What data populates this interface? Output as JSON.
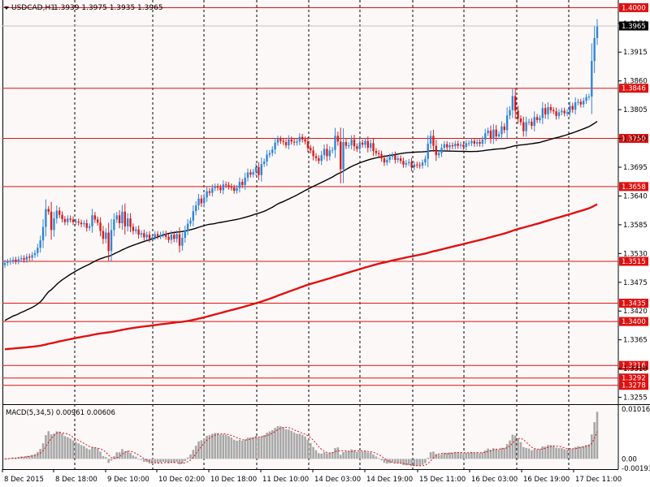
{
  "header": {
    "symbol_timeframe": "USDCAD,H1",
    "ohlc": "1.3939 1.3975 1.3935 1.3965"
  },
  "indicator": {
    "label": "MACD(5,34,5) 0.00961 0.00606"
  },
  "colors": {
    "background": "#fdf8f8",
    "up_candle": "#2e86d9",
    "down_candle": "#d81b1b",
    "level_line": "#e01010",
    "ma_fast": "#000000",
    "ma_slow": "#e01010",
    "macd_hist": "#a8a8a8",
    "macd_signal": "#e01010",
    "current_price_bg": "#000000"
  },
  "chart_data": [
    {
      "type": "candlestick",
      "symbol": "USDCAD",
      "timeframe": "H1",
      "ylim": [
        1.3245,
        1.401
      ],
      "y_ticks": [
        1.3255,
        1.331,
        1.3365,
        1.342,
        1.3475,
        1.353,
        1.3585,
        1.364,
        1.3695,
        1.375,
        1.3805,
        1.386,
        1.3915,
        1.397
      ],
      "x_ticks": [
        "8 Dec 2015",
        "8 Dec 18:00",
        "9 Dec 10:00",
        "10 Dec 02:00",
        "10 Dec 18:00",
        "11 Dec 10:00",
        "14 Dec 03:00",
        "14 Dec 19:00",
        "15 Dec 11:00",
        "16 Dec 03:00",
        "16 Dec 19:00",
        "17 Dec 11:00"
      ],
      "current_price": "1.3965",
      "levels": [
        "1.4000",
        "1.3846",
        "1.3750",
        "1.3658",
        "1.3515",
        "1.3435",
        "1.3400",
        "1.3316",
        "1.3292",
        "1.3278"
      ],
      "close": [
        1.3512,
        1.3514,
        1.3516,
        1.3518,
        1.3515,
        1.3519,
        1.3521,
        1.3518,
        1.3524,
        1.3522,
        1.3527,
        1.3531,
        1.3541,
        1.3555,
        1.3581,
        1.3615,
        1.361,
        1.3575,
        1.3597,
        1.3612,
        1.3604,
        1.3596,
        1.359,
        1.3597,
        1.3595,
        1.359,
        1.3591,
        1.3589,
        1.3586,
        1.3588,
        1.3579,
        1.3582,
        1.3603,
        1.3595,
        1.3589,
        1.3573,
        1.3558,
        1.357,
        1.3535,
        1.3575,
        1.3595,
        1.3603,
        1.3588,
        1.361,
        1.3582,
        1.3597,
        1.3581,
        1.3573,
        1.3576,
        1.3566,
        1.3569,
        1.3561,
        1.3566,
        1.3558,
        1.3561,
        1.3567,
        1.3563,
        1.3566,
        1.3568,
        1.3562,
        1.3556,
        1.3566,
        1.3558,
        1.3567,
        1.3545,
        1.356,
        1.3574,
        1.3587,
        1.3593,
        1.3611,
        1.3622,
        1.3635,
        1.3626,
        1.3637,
        1.3649,
        1.3646,
        1.3655,
        1.3658,
        1.3656,
        1.3651,
        1.3662,
        1.3661,
        1.3658,
        1.3656,
        1.365,
        1.3655,
        1.3667,
        1.3661,
        1.3675,
        1.3685,
        1.3681,
        1.3686,
        1.3695,
        1.368,
        1.3701,
        1.3706,
        1.3719,
        1.3722,
        1.3729,
        1.3742,
        1.3749,
        1.3745,
        1.3743,
        1.3737,
        1.3748,
        1.3744,
        1.3742,
        1.3744,
        1.3753,
        1.3748,
        1.3744,
        1.3732,
        1.3727,
        1.3716,
        1.3712,
        1.3707,
        1.3718,
        1.373,
        1.3716,
        1.3727,
        1.3728,
        1.3755,
        1.3744,
        1.3691,
        1.3743,
        1.3736,
        1.3737,
        1.3748,
        1.3735,
        1.373,
        1.3742,
        1.3738,
        1.3745,
        1.3732,
        1.3741,
        1.3726,
        1.3722,
        1.372,
        1.3712,
        1.3704,
        1.3709,
        1.3715,
        1.3718,
        1.3709,
        1.3712,
        1.3707,
        1.37,
        1.3703,
        1.3705,
        1.3695,
        1.37,
        1.3699,
        1.3698,
        1.3704,
        1.3711,
        1.374,
        1.3755,
        1.3736,
        1.3718,
        1.3722,
        1.3732,
        1.3739,
        1.3733,
        1.3737,
        1.3735,
        1.374,
        1.3736,
        1.3738,
        1.3734,
        1.3741,
        1.3741,
        1.3745,
        1.374,
        1.3743,
        1.374,
        1.3748,
        1.376,
        1.3765,
        1.375,
        1.3767,
        1.3754,
        1.3758,
        1.3773,
        1.3766,
        1.3794,
        1.3804,
        1.3831,
        1.3803,
        1.3788,
        1.3781,
        1.3764,
        1.3781,
        1.3782,
        1.3774,
        1.3791,
        1.3785,
        1.3789,
        1.3808,
        1.3796,
        1.381,
        1.3804,
        1.3802,
        1.3793,
        1.38,
        1.3803,
        1.3798,
        1.38,
        1.3812,
        1.3805,
        1.3819,
        1.382,
        1.3815,
        1.3822,
        1.3829,
        1.383,
        1.3898,
        1.3942,
        1.3965
      ]
    },
    {
      "type": "histogram",
      "name": "MACD(5,34,5)",
      "main": 0.00961,
      "signal": 0.00606,
      "ylim": [
        -0.00193,
        0.01016
      ],
      "y_ticks": [
        "0.01016",
        "0.00",
        "-0.00193"
      ]
    }
  ]
}
